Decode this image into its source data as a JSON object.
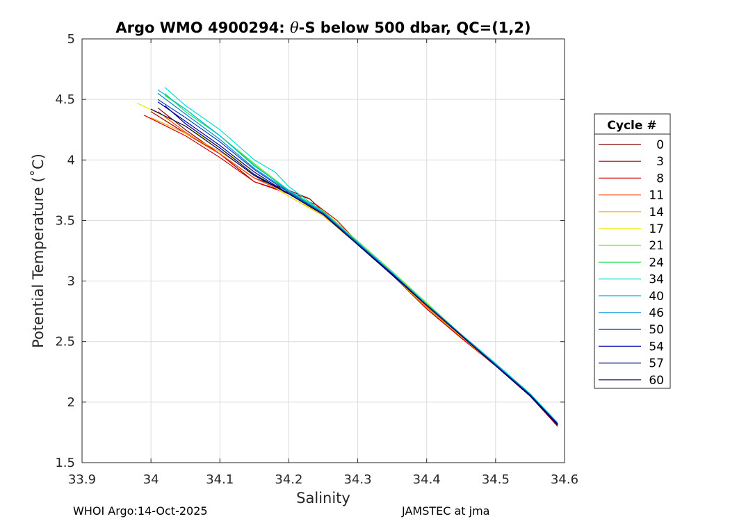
{
  "chart_data": {
    "type": "line",
    "title": "Argo WMO 4900294: θ-S below 500 dbar,  QC=(1,2)",
    "title_parts": {
      "prefix": "Argo WMO 4900294: ",
      "symbol": "θ",
      "suffix": "-S below 500 dbar,  QC=(1,2)"
    },
    "xlabel": "Salinity",
    "ylabel": "Potential Temperature (˚C)",
    "xlim": [
      33.9,
      34.6
    ],
    "ylim": [
      1.5,
      5
    ],
    "xticks": [
      33.9,
      34,
      34.1,
      34.2,
      34.3,
      34.4,
      34.5,
      34.6
    ],
    "xtick_labels": [
      "33.9",
      "34",
      "34.1",
      "34.2",
      "34.3",
      "34.4",
      "34.5",
      "34.6"
    ],
    "yticks": [
      1.5,
      2,
      2.5,
      3,
      3.5,
      4,
      4.5,
      5
    ],
    "ytick_labels": [
      "1.5",
      "2",
      "2.5",
      "3",
      "3.5",
      "4",
      "4.5",
      "5"
    ],
    "grid": true,
    "legend_title": "Cycle #",
    "legend_position": "outside-right",
    "series": [
      {
        "name": "0",
        "color": "#800000",
        "x": [
          34.01,
          34.05,
          34.1,
          34.15,
          34.2,
          34.23,
          34.26,
          34.3,
          34.35,
          34.4,
          34.45,
          34.5,
          34.55,
          34.59
        ],
        "y": [
          4.43,
          4.25,
          4.05,
          3.85,
          3.75,
          3.68,
          3.52,
          3.3,
          3.05,
          2.8,
          2.55,
          2.3,
          2.05,
          1.8
        ]
      },
      {
        "name": "3",
        "color": "#a50000",
        "x": [
          34.0,
          34.05,
          34.1,
          34.15,
          34.2,
          34.23,
          34.26,
          34.3,
          34.35,
          34.4,
          34.45,
          34.5,
          34.55,
          34.59
        ],
        "y": [
          4.4,
          4.22,
          4.05,
          3.82,
          3.73,
          3.68,
          3.52,
          3.3,
          3.05,
          2.77,
          2.53,
          2.3,
          2.05,
          1.81
        ]
      },
      {
        "name": "8",
        "color": "#d40000",
        "x": [
          33.99,
          34.05,
          34.1,
          34.15,
          34.2,
          34.24,
          34.27,
          34.3,
          34.35,
          34.4,
          34.45,
          34.5,
          34.55,
          34.59
        ],
        "y": [
          4.37,
          4.2,
          4.02,
          3.82,
          3.72,
          3.63,
          3.5,
          3.32,
          3.05,
          2.78,
          2.53,
          2.3,
          2.05,
          1.81
        ]
      },
      {
        "name": "11",
        "color": "#ff4400",
        "x": [
          34.01,
          34.05,
          34.1,
          34.15,
          34.2,
          34.25,
          34.3,
          34.35,
          34.4,
          34.45,
          34.5,
          34.55,
          34.59
        ],
        "y": [
          4.4,
          4.23,
          4.05,
          3.85,
          3.72,
          3.56,
          3.31,
          3.05,
          2.79,
          2.54,
          2.3,
          2.06,
          1.82
        ]
      },
      {
        "name": "14",
        "color": "#ffaa00",
        "x": [
          34.0,
          34.05,
          34.1,
          34.15,
          34.2,
          34.25,
          34.3,
          34.35,
          34.4,
          34.45,
          34.5,
          34.55,
          34.59
        ],
        "y": [
          4.35,
          4.22,
          4.07,
          3.88,
          3.7,
          3.54,
          3.3,
          3.05,
          2.78,
          2.54,
          2.3,
          2.06,
          1.82
        ]
      },
      {
        "name": "17",
        "color": "#e8e800",
        "x": [
          33.98,
          34.05,
          34.1,
          34.15,
          34.2,
          34.25,
          34.3,
          34.35,
          34.4,
          34.45,
          34.5,
          34.55,
          34.59
        ],
        "y": [
          4.47,
          4.28,
          4.1,
          3.9,
          3.7,
          3.55,
          3.31,
          3.06,
          2.8,
          2.55,
          2.31,
          2.06,
          1.82
        ]
      },
      {
        "name": "21",
        "color": "#66ee33",
        "x": [
          34.02,
          34.05,
          34.1,
          34.15,
          34.2,
          34.25,
          34.3,
          34.35,
          34.4,
          34.45,
          34.5,
          34.55,
          34.59
        ],
        "y": [
          4.53,
          4.42,
          4.2,
          3.97,
          3.75,
          3.58,
          3.33,
          3.08,
          2.82,
          2.56,
          2.32,
          2.07,
          1.83
        ]
      },
      {
        "name": "24",
        "color": "#22dd55",
        "x": [
          34.02,
          34.05,
          34.1,
          34.15,
          34.2,
          34.25,
          34.3,
          34.35,
          34.4,
          34.45,
          34.5,
          34.55,
          34.59
        ],
        "y": [
          4.55,
          4.4,
          4.2,
          3.96,
          3.74,
          3.57,
          3.32,
          3.07,
          2.81,
          2.56,
          2.32,
          2.07,
          1.83
        ]
      },
      {
        "name": "34",
        "color": "#00dddd",
        "x": [
          34.02,
          34.05,
          34.1,
          34.15,
          34.18,
          34.2,
          34.25,
          34.3,
          34.35,
          34.4,
          34.45,
          34.5,
          34.55,
          34.59
        ],
        "y": [
          4.6,
          4.45,
          4.25,
          4.0,
          3.9,
          3.78,
          3.57,
          3.32,
          3.07,
          2.81,
          2.56,
          2.32,
          2.07,
          1.83
        ]
      },
      {
        "name": "40",
        "color": "#00bbdd",
        "x": [
          34.01,
          34.05,
          34.1,
          34.15,
          34.2,
          34.25,
          34.3,
          34.35,
          34.4,
          34.45,
          34.5,
          34.55,
          34.59
        ],
        "y": [
          4.58,
          4.42,
          4.2,
          3.95,
          3.75,
          3.57,
          3.32,
          3.07,
          2.81,
          2.56,
          2.31,
          2.07,
          1.82
        ]
      },
      {
        "name": "46",
        "color": "#0088cc",
        "x": [
          34.01,
          34.05,
          34.1,
          34.15,
          34.2,
          34.25,
          34.3,
          34.35,
          34.4,
          34.45,
          34.5,
          34.55,
          34.59
        ],
        "y": [
          4.55,
          4.38,
          4.17,
          3.93,
          3.74,
          3.56,
          3.31,
          3.06,
          2.8,
          2.56,
          2.31,
          2.06,
          1.82
        ]
      },
      {
        "name": "50",
        "color": "#0044bb",
        "x": [
          34.01,
          34.05,
          34.1,
          34.15,
          34.2,
          34.25,
          34.3,
          34.35,
          34.4,
          34.45,
          34.5,
          34.55,
          34.59
        ],
        "y": [
          4.5,
          4.35,
          4.15,
          3.92,
          3.73,
          3.56,
          3.31,
          3.06,
          2.8,
          2.55,
          2.31,
          2.06,
          1.82
        ]
      },
      {
        "name": "54",
        "color": "#0000aa",
        "x": [
          34.01,
          34.05,
          34.1,
          34.15,
          34.2,
          34.25,
          34.3,
          34.35,
          34.4,
          34.45,
          34.5,
          34.55,
          34.59
        ],
        "y": [
          4.48,
          4.32,
          4.12,
          3.9,
          3.72,
          3.55,
          3.3,
          3.06,
          2.8,
          2.55,
          2.3,
          2.06,
          1.82
        ]
      },
      {
        "name": "57",
        "color": "#000080",
        "x": [
          34.02,
          34.05,
          34.1,
          34.15,
          34.2,
          34.25,
          34.3,
          34.35,
          34.4,
          34.45,
          34.5,
          34.55,
          34.59
        ],
        "y": [
          4.45,
          4.3,
          4.1,
          3.88,
          3.72,
          3.55,
          3.3,
          3.05,
          2.8,
          2.55,
          2.3,
          2.06,
          1.81
        ]
      },
      {
        "name": "60",
        "color": "#000066",
        "x": [
          34.0,
          34.05,
          34.1,
          34.15,
          34.2,
          34.25,
          34.3,
          34.35,
          34.4,
          34.45,
          34.5,
          34.55,
          34.59
        ],
        "y": [
          4.42,
          4.28,
          4.08,
          3.87,
          3.72,
          3.55,
          3.3,
          3.05,
          2.8,
          2.55,
          2.3,
          2.05,
          1.81
        ]
      }
    ]
  },
  "footer": {
    "left": "WHOI Argo:14-Oct-2025",
    "right": "JAMSTEC at jma"
  }
}
